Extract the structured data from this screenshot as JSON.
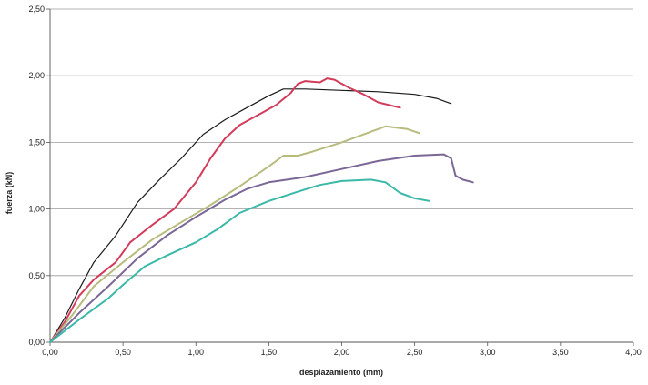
{
  "chart_data": {
    "type": "line",
    "title": "",
    "xlabel": "desplazamiento (mm)",
    "ylabel": "fuerza (kN)",
    "xlim": [
      0,
      4
    ],
    "ylim": [
      0,
      2.5
    ],
    "x_ticks": [
      "0,00",
      "0,50",
      "1,00",
      "1,50",
      "2,00",
      "2,50",
      "3,00",
      "3,50",
      "4,00"
    ],
    "y_ticks": [
      "0,00",
      "0,50",
      "1,00",
      "1,50",
      "2,00",
      "2,50"
    ],
    "grid": "horizontal",
    "legend": "none",
    "series": [
      {
        "color": "#1a1a1a",
        "width": 1.2,
        "points": [
          [
            0,
            0
          ],
          [
            0.1,
            0.18
          ],
          [
            0.2,
            0.4
          ],
          [
            0.3,
            0.6
          ],
          [
            0.45,
            0.8
          ],
          [
            0.6,
            1.05
          ],
          [
            0.75,
            1.22
          ],
          [
            0.9,
            1.38
          ],
          [
            1.05,
            1.56
          ],
          [
            1.2,
            1.67
          ],
          [
            1.35,
            1.76
          ],
          [
            1.5,
            1.85
          ],
          [
            1.6,
            1.9
          ],
          [
            1.75,
            1.9
          ],
          [
            2.0,
            1.89
          ],
          [
            2.25,
            1.88
          ],
          [
            2.5,
            1.86
          ],
          [
            2.65,
            1.83
          ],
          [
            2.75,
            1.79
          ]
        ]
      },
      {
        "color": "#d23c5a",
        "width": 2,
        "points": [
          [
            0,
            0
          ],
          [
            0.1,
            0.15
          ],
          [
            0.2,
            0.35
          ],
          [
            0.3,
            0.47
          ],
          [
            0.45,
            0.6
          ],
          [
            0.55,
            0.75
          ],
          [
            0.7,
            0.88
          ],
          [
            0.85,
            1.0
          ],
          [
            1.0,
            1.2
          ],
          [
            1.1,
            1.38
          ],
          [
            1.2,
            1.53
          ],
          [
            1.3,
            1.63
          ],
          [
            1.45,
            1.72
          ],
          [
            1.55,
            1.78
          ],
          [
            1.65,
            1.87
          ],
          [
            1.7,
            1.94
          ],
          [
            1.75,
            1.96
          ],
          [
            1.85,
            1.95
          ],
          [
            1.9,
            1.98
          ],
          [
            1.95,
            1.97
          ],
          [
            2.05,
            1.91
          ],
          [
            2.15,
            1.86
          ],
          [
            2.25,
            1.8
          ],
          [
            2.4,
            1.76
          ]
        ]
      },
      {
        "color": "#b8bb7e",
        "width": 2,
        "points": [
          [
            0,
            0
          ],
          [
            0.15,
            0.2
          ],
          [
            0.3,
            0.42
          ],
          [
            0.5,
            0.6
          ],
          [
            0.7,
            0.77
          ],
          [
            0.9,
            0.9
          ],
          [
            1.1,
            1.03
          ],
          [
            1.3,
            1.17
          ],
          [
            1.5,
            1.32
          ],
          [
            1.6,
            1.4
          ],
          [
            1.7,
            1.4
          ],
          [
            1.8,
            1.43
          ],
          [
            2.0,
            1.5
          ],
          [
            2.2,
            1.58
          ],
          [
            2.3,
            1.62
          ],
          [
            2.45,
            1.6
          ],
          [
            2.53,
            1.57
          ]
        ]
      },
      {
        "color": "#7b6796",
        "width": 2,
        "points": [
          [
            0,
            0
          ],
          [
            0.2,
            0.22
          ],
          [
            0.4,
            0.42
          ],
          [
            0.6,
            0.63
          ],
          [
            0.8,
            0.8
          ],
          [
            1.0,
            0.94
          ],
          [
            1.2,
            1.07
          ],
          [
            1.35,
            1.15
          ],
          [
            1.5,
            1.2
          ],
          [
            1.75,
            1.24
          ],
          [
            2.0,
            1.3
          ],
          [
            2.25,
            1.36
          ],
          [
            2.5,
            1.4
          ],
          [
            2.7,
            1.41
          ],
          [
            2.75,
            1.38
          ],
          [
            2.78,
            1.25
          ],
          [
            2.83,
            1.22
          ],
          [
            2.9,
            1.2
          ]
        ]
      },
      {
        "color": "#3bb8a8",
        "width": 2,
        "points": [
          [
            0,
            0
          ],
          [
            0.2,
            0.17
          ],
          [
            0.4,
            0.33
          ],
          [
            0.5,
            0.43
          ],
          [
            0.65,
            0.57
          ],
          [
            0.8,
            0.65
          ],
          [
            1.0,
            0.75
          ],
          [
            1.15,
            0.85
          ],
          [
            1.3,
            0.97
          ],
          [
            1.5,
            1.06
          ],
          [
            1.7,
            1.13
          ],
          [
            1.85,
            1.18
          ],
          [
            2.0,
            1.21
          ],
          [
            2.2,
            1.22
          ],
          [
            2.3,
            1.2
          ],
          [
            2.4,
            1.12
          ],
          [
            2.5,
            1.08
          ],
          [
            2.6,
            1.06
          ]
        ]
      }
    ]
  }
}
